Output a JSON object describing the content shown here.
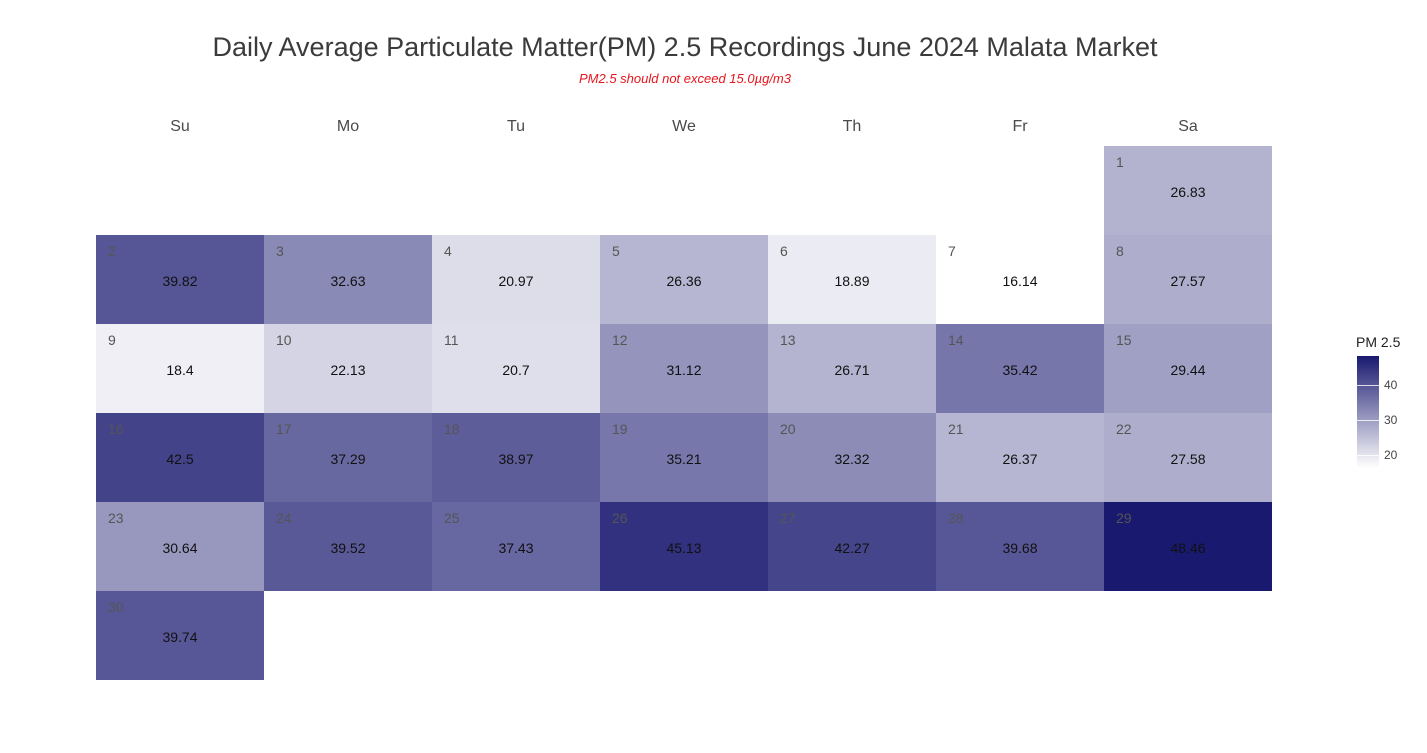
{
  "title": "Daily Average Particulate Matter(PM) 2.5 Recordings June 2024 Malata Market",
  "subtitle": "PM2.5 should not exceed 15.0µg/m3",
  "colors": {
    "low": "#ffffff",
    "high": "#191970"
  },
  "chart_data": {
    "type": "heatmap",
    "title": "Daily Average Particulate Matter(PM) 2.5 Recordings June 2024 Malata Market",
    "subtitle": "PM2.5 should not exceed 15.0µg/m3",
    "weekdays": [
      "Su",
      "Mo",
      "Tu",
      "We",
      "Th",
      "Fr",
      "Sa"
    ],
    "first_weekday_index": 6,
    "days": [
      1,
      2,
      3,
      4,
      5,
      6,
      7,
      8,
      9,
      10,
      11,
      12,
      13,
      14,
      15,
      16,
      17,
      18,
      19,
      20,
      21,
      22,
      23,
      24,
      25,
      26,
      27,
      28,
      29,
      30
    ],
    "values": [
      26.83,
      39.82,
      32.63,
      20.97,
      26.36,
      18.89,
      16.14,
      27.57,
      18.4,
      22.13,
      20.7,
      31.12,
      26.71,
      35.42,
      29.44,
      42.5,
      37.29,
      38.97,
      35.21,
      32.32,
      26.37,
      27.58,
      30.64,
      39.52,
      37.43,
      45.13,
      42.27,
      39.68,
      48.46,
      39.74
    ],
    "labels": [
      "26.83",
      "39.82",
      "32.63",
      "20.97",
      "26.36",
      "18.89",
      "16.14",
      "27.57",
      "18.4",
      "22.13",
      "20.7",
      "31.12",
      "26.71",
      "35.42",
      "29.44",
      "42.5",
      "37.29",
      "38.97",
      "35.21",
      "32.32",
      "26.37",
      "27.58",
      "30.64",
      "39.52",
      "37.43",
      "45.13",
      "42.27",
      "39.68",
      "48.46",
      "39.74"
    ],
    "legend": {
      "title": "PM 2.5",
      "ticks": [
        20,
        30,
        40
      ],
      "tick_labels": [
        "20",
        "30",
        "40"
      ],
      "range": [
        16.14,
        48.46
      ],
      "position": "right"
    }
  }
}
